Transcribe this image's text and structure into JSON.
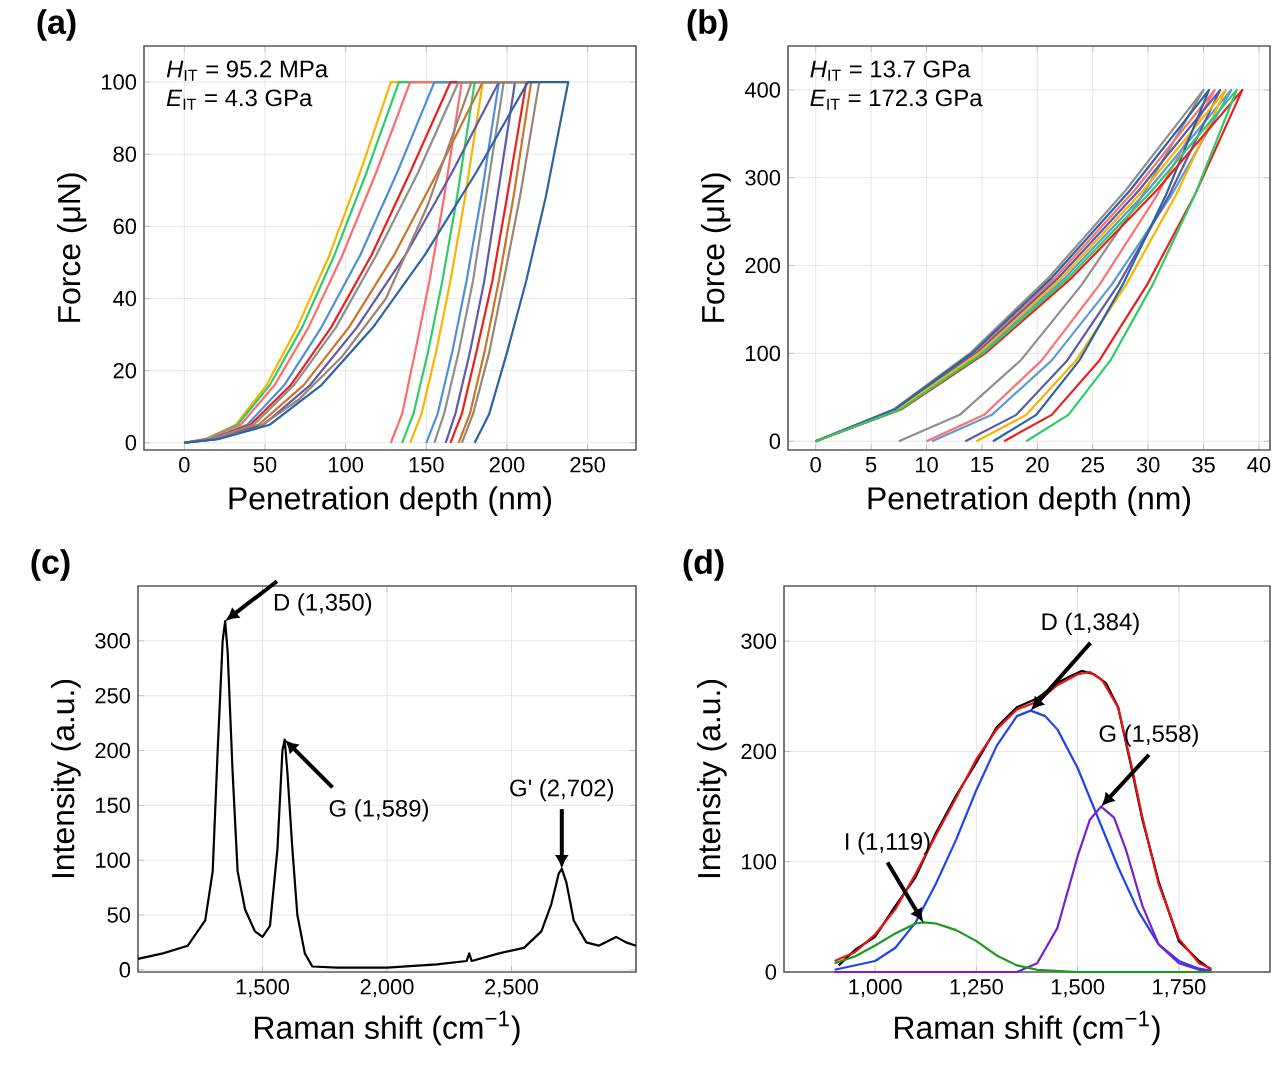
{
  "chart_data": [
    {
      "type": "line",
      "title": "(a)",
      "xlabel": "Penetration depth (nm)",
      "ylabel": "Force (μN)",
      "xlim": [
        -25,
        280
      ],
      "ylim": [
        -2,
        110
      ],
      "xticks": [
        0,
        50,
        100,
        150,
        200,
        250
      ],
      "yticks": [
        0,
        20,
        40,
        60,
        80,
        100
      ],
      "grid": true,
      "annotations": [
        "*H*$_{IT}$ = 95.2 MPa",
        "*E*$_{IT}$ = 4.3 GPa"
      ],
      "series": [
        {
          "color": "#f7b500",
          "x": [
            0,
            13,
            32,
            51,
            70,
            90,
            109,
            128,
            185,
            174,
            165,
            156,
            147,
            140
          ],
          "values": [
            0,
            1,
            5,
            16,
            32,
            52,
            75,
            100,
            100,
            68,
            45,
            25,
            8,
            0
          ]
        },
        {
          "color": "#2dcc6a",
          "x": [
            0,
            13,
            33,
            53,
            73,
            93,
            113,
            133,
            180,
            169,
            160,
            151,
            142,
            135
          ],
          "values": [
            0,
            1,
            5,
            16,
            32,
            52,
            75,
            100,
            100,
            68,
            45,
            25,
            8,
            0
          ]
        },
        {
          "color": "#ff6b6b",
          "x": [
            0,
            14,
            35,
            56,
            77,
            98,
            119,
            140,
            172,
            161,
            152,
            143,
            135,
            128
          ],
          "values": [
            0,
            1,
            5,
            16,
            32,
            52,
            75,
            100,
            100,
            68,
            45,
            25,
            8,
            0
          ]
        },
        {
          "color": "#4f8fd8",
          "x": [
            0,
            16,
            39,
            62,
            85,
            109,
            132,
            155,
            195,
            184,
            175,
            166,
            157,
            150
          ],
          "values": [
            0,
            1,
            5,
            16,
            32,
            52,
            75,
            100,
            100,
            68,
            45,
            25,
            8,
            0
          ]
        },
        {
          "color": "#e8201e",
          "x": [
            0,
            17,
            41,
            66,
            91,
            116,
            140,
            165,
            212,
            200,
            191,
            181,
            172,
            165
          ],
          "values": [
            0,
            1,
            5,
            16,
            32,
            52,
            75,
            100,
            100,
            68,
            45,
            25,
            8,
            0
          ]
        },
        {
          "color": "#8e8e8e",
          "x": [
            0,
            17,
            43,
            68,
            94,
            119,
            145,
            170,
            198,
            187,
            179,
            170,
            161,
            155
          ],
          "values": [
            0,
            1,
            5,
            16,
            32,
            52,
            75,
            100,
            100,
            68,
            45,
            25,
            8,
            0
          ]
        },
        {
          "color": "#c8752a",
          "x": [
            0,
            19,
            46,
            74,
            102,
            130,
            157,
            185,
            215,
            204,
            195,
            186,
            177,
            170
          ],
          "values": [
            0,
            1,
            5,
            16,
            32,
            52,
            75,
            100,
            100,
            68,
            45,
            25,
            8,
            0
          ]
        },
        {
          "color": "#5f5aa8",
          "x": [
            0,
            20,
            49,
            78,
            107,
            137,
            166,
            195,
            205,
            194,
            186,
            177,
            168,
            162
          ],
          "values": [
            0,
            1,
            5,
            16,
            32,
            52,
            75,
            100,
            100,
            68,
            45,
            25,
            8,
            0
          ]
        },
        {
          "color": "#9b8474",
          "x": [
            0,
            18,
            45,
            71,
            98,
            125,
            151,
            178,
            220,
            208,
            198,
            189,
            179,
            172
          ],
          "values": [
            0,
            1,
            4,
            12,
            24,
            40,
            66,
            100,
            100,
            68,
            45,
            25,
            8,
            0
          ]
        },
        {
          "color": "#2c62a6",
          "x": [
            0,
            21,
            53,
            85,
            117,
            149,
            181,
            213,
            238,
            224,
            212,
            200,
            189,
            180
          ],
          "values": [
            0,
            1,
            5,
            16,
            32,
            52,
            75,
            100,
            100,
            68,
            45,
            25,
            8,
            0
          ]
        }
      ]
    },
    {
      "type": "line",
      "title": "(b)",
      "xlabel": "Penetration depth (nm)",
      "ylabel": "Force (μN)",
      "xlim": [
        -2.5,
        41
      ],
      "ylim": [
        -10,
        450
      ],
      "xticks": [
        0,
        5,
        10,
        15,
        20,
        25,
        30,
        35,
        40
      ],
      "yticks": [
        0,
        100,
        200,
        300,
        400
      ],
      "grid": true,
      "annotations": [
        "*H*$_{IT}$ = 13.7 GPa",
        "*E*$_{IT}$ = 172.3 GPa"
      ],
      "series": [
        {
          "color": "#8f8f8f",
          "x": [
            0,
            7,
            14,
            21,
            28,
            35,
            29.5,
            24,
            18.5,
            13,
            7.5
          ],
          "values": [
            0,
            36,
            101,
            186,
            286,
            400,
            280,
            178,
            92,
            30,
            0
          ]
        },
        {
          "color": "#ff7070",
          "x": [
            0,
            7.2,
            14.4,
            21.6,
            28.8,
            36,
            30.8,
            25.6,
            20.4,
            15.2,
            10
          ],
          "values": [
            0,
            36,
            101,
            186,
            286,
            400,
            280,
            178,
            92,
            30,
            0
          ]
        },
        {
          "color": "#5b9bd5",
          "x": [
            0,
            7.5,
            15,
            22.5,
            30,
            37.5,
            32.1,
            26.7,
            21.3,
            15.9,
            10.5
          ],
          "values": [
            0,
            36,
            101,
            186,
            286,
            400,
            280,
            178,
            92,
            30,
            0
          ]
        },
        {
          "color": "#5a5aa5",
          "x": [
            0,
            7.3,
            14.6,
            21.9,
            29.2,
            36.5,
            31.9,
            27.3,
            22.7,
            18.1,
            13.5
          ],
          "values": [
            0,
            36,
            101,
            186,
            286,
            400,
            280,
            178,
            92,
            30,
            0
          ]
        },
        {
          "color": "#f7b500",
          "x": [
            0,
            7.4,
            14.8,
            22.2,
            29.6,
            37,
            32.5,
            28,
            23.5,
            19,
            14.5
          ],
          "values": [
            0,
            36,
            101,
            186,
            286,
            400,
            280,
            178,
            92,
            30,
            0
          ]
        },
        {
          "color": "#2c62a6",
          "x": [
            0,
            7.1,
            14.2,
            21.3,
            28.4,
            35.5,
            31.6,
            27.7,
            23.8,
            19.9,
            16
          ],
          "values": [
            0,
            36,
            101,
            186,
            286,
            400,
            280,
            178,
            92,
            30,
            0
          ]
        },
        {
          "color": "#e8201e",
          "x": [
            0,
            7.7,
            15.4,
            23.1,
            30.8,
            38.5,
            34.2,
            29.9,
            25.6,
            21.3,
            17
          ],
          "values": [
            0,
            36,
            101,
            186,
            286,
            400,
            280,
            178,
            92,
            30,
            0
          ]
        },
        {
          "color": "#2dcc6a",
          "x": [
            0,
            7.6,
            15.2,
            22.8,
            30.4,
            38,
            34.2,
            30.4,
            26.6,
            22.8,
            19
          ],
          "values": [
            0,
            36,
            101,
            186,
            286,
            400,
            280,
            178,
            92,
            30,
            0
          ]
        }
      ]
    },
    {
      "type": "line",
      "title": "(c)",
      "xlabel": "Raman shift (cm$^{−1}$)",
      "ylabel": "Intensity (a.u.)",
      "xlim": [
        1000,
        3000
      ],
      "ylim": [
        -2,
        350
      ],
      "xticks": [
        {
          "value": 1500,
          "label": "1,500"
        },
        {
          "value": 2000,
          "label": "2,000"
        },
        {
          "value": 2500,
          "label": "2,500"
        }
      ],
      "yticks": [
        0,
        50,
        100,
        150,
        200,
        250,
        300
      ],
      "grid": true,
      "annotations": [
        {
          "text": "D (1,350)",
          "x": 1350,
          "y": 318
        },
        {
          "text": "G (1,589)",
          "x": 1589,
          "y": 210
        },
        {
          "text": "G' (2,702)",
          "x": 2702,
          "y": 92
        }
      ],
      "series": [
        {
          "color": "#000000",
          "x": [
            1000,
            1100,
            1200,
            1270,
            1300,
            1320,
            1340,
            1350,
            1360,
            1380,
            1400,
            1430,
            1470,
            1500,
            1530,
            1560,
            1580,
            1589,
            1600,
            1620,
            1640,
            1670,
            1700,
            1800,
            2000,
            2200,
            2320,
            2330,
            2340,
            2450,
            2550,
            2620,
            2660,
            2690,
            2702,
            2720,
            2750,
            2800,
            2850,
            2920,
            2960,
            3000
          ],
          "values": [
            10,
            15,
            22,
            45,
            90,
            200,
            300,
            318,
            290,
            180,
            90,
            55,
            35,
            30,
            40,
            110,
            200,
            210,
            180,
            110,
            50,
            15,
            3,
            2,
            2,
            5,
            8,
            15,
            8,
            15,
            20,
            35,
            60,
            88,
            92,
            80,
            45,
            25,
            22,
            30,
            25,
            22
          ]
        }
      ]
    },
    {
      "type": "line",
      "title": "(d)",
      "xlabel": "Raman shift (cm$^{−1}$)",
      "ylabel": "Intensity (a.u.)",
      "xlim": [
        775,
        1975
      ],
      "ylim": [
        0,
        350
      ],
      "xticks": [
        {
          "value": 1000,
          "label": "1,000"
        },
        {
          "value": 1250,
          "label": "1,250"
        },
        {
          "value": 1500,
          "label": "1,500"
        },
        {
          "value": 1750,
          "label": "1,750"
        }
      ],
      "yticks": [
        0,
        100,
        200,
        300
      ],
      "grid": true,
      "annotations": [
        {
          "text": "D (1,384)",
          "x": 1384,
          "y": 237
        },
        {
          "text": "G (1,558)",
          "x": 1558,
          "y": 150
        },
        {
          "text": "I (1,119)",
          "x": 1119,
          "y": 45
        }
      ],
      "series": [
        {
          "color": "#000000",
          "x": [
            910,
            950,
            1000,
            1050,
            1100,
            1150,
            1200,
            1250,
            1300,
            1350,
            1400,
            1450,
            1480,
            1510,
            1540,
            1570,
            1600,
            1633,
            1660,
            1700,
            1750,
            1800,
            1830
          ],
          "values": [
            6,
            20,
            32,
            60,
            86,
            126,
            160,
            190,
            222,
            240,
            248,
            262,
            268,
            273,
            270,
            262,
            240,
            185,
            138,
            82,
            28,
            10,
            2
          ]
        },
        {
          "color": "#ee1111",
          "x": [
            900,
            950,
            1000,
            1050,
            1100,
            1150,
            1200,
            1250,
            1300,
            1350,
            1400,
            1450,
            1500,
            1530,
            1560,
            1600,
            1633,
            1660,
            1700,
            1750,
            1800,
            1830
          ],
          "values": [
            10,
            18,
            34,
            57,
            89,
            124,
            158,
            193,
            220,
            238,
            245,
            260,
            270,
            272,
            265,
            240,
            187,
            140,
            80,
            30,
            8,
            3
          ]
        },
        {
          "color": "#2244ee",
          "x": [
            900,
            1000,
            1050,
            1100,
            1150,
            1200,
            1250,
            1300,
            1350,
            1384,
            1420,
            1450,
            1500,
            1550,
            1600,
            1650,
            1700,
            1750,
            1800,
            1830
          ],
          "values": [
            2,
            10,
            22,
            45,
            80,
            120,
            165,
            205,
            232,
            237,
            232,
            220,
            185,
            140,
            95,
            55,
            25,
            10,
            3,
            1
          ]
        },
        {
          "color": "#7a1fd0",
          "x": [
            900,
            1350,
            1400,
            1450,
            1500,
            1530,
            1558,
            1590,
            1620,
            1660,
            1700,
            1750,
            1800,
            1830
          ],
          "values": [
            0,
            0,
            8,
            40,
            105,
            138,
            150,
            140,
            110,
            60,
            25,
            8,
            2,
            0
          ]
        },
        {
          "color": "#1a9a1a",
          "x": [
            900,
            950,
            1000,
            1050,
            1100,
            1119,
            1150,
            1200,
            1250,
            1300,
            1350,
            1400,
            1500,
            1830
          ],
          "values": [
            8,
            14,
            24,
            35,
            44,
            45,
            44,
            38,
            28,
            15,
            6,
            2,
            0,
            0
          ]
        }
      ]
    }
  ]
}
